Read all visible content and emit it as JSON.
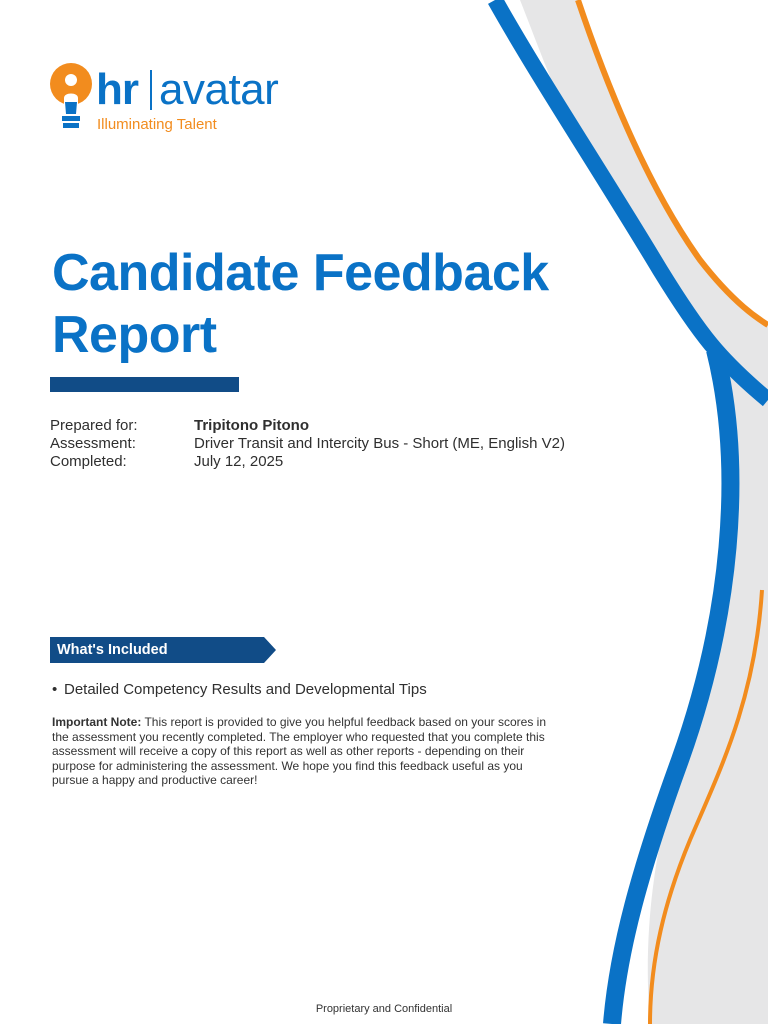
{
  "brand": {
    "logo_hr": "hr",
    "logo_avatar": "avatar",
    "tagline_part1": "Illuminating",
    "tagline_part2": " Talent",
    "primary_color": "#0a72c6",
    "accent_color": "#f28c1e",
    "dark_color": "#114c87"
  },
  "report": {
    "title_line1": "Candidate Feedback",
    "title_line2": "Report"
  },
  "meta": {
    "prepared_for_label": "Prepared for:",
    "prepared_for_value": "Tripitono Pitono",
    "assessment_label": "Assessment:",
    "assessment_value": "Driver Transit and Intercity Bus - Short (ME, English V2)",
    "completed_label": "Completed:",
    "completed_value": "July 12, 2025"
  },
  "included": {
    "heading": "What's Included",
    "items": [
      "Detailed Competency Results and Developmental Tips"
    ]
  },
  "note": {
    "label": "Important Note:",
    "text": " This report is provided to give you helpful feedback based on your scores in the assessment you recently completed. The employer who requested that you complete this assessment will receive a copy of this report as well as other reports - depending on their purpose for administering the assessment. We hope you find this feedback useful as you pursue a happy and productive career!"
  },
  "footer": {
    "text": "Proprietary and Confidential"
  }
}
